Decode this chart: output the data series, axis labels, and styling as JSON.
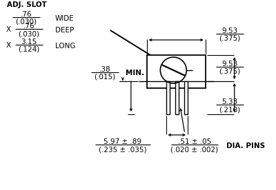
{
  "bg_color": "#ffffff",
  "line_color": "#000000",
  "text_color": "#000000",
  "adj_slot_label": "ADJ. SLOT",
  "wide_label": "WIDE",
  "deep_label": "DEEP",
  "long_label": "LONG",
  "min_label": "MIN.",
  "dia_pins_label": "DIA. PINS",
  "dim1_top": ".76",
  "dim1_bot": "(.030)",
  "dim2_top": ".76",
  "dim2_bot": "(.030)",
  "dim3_top": "3.15",
  "dim3_bot": "(.124)",
  "dim_038_top": ".38",
  "dim_038_bot": "(.015)",
  "dim_953a_top": "9.53",
  "dim_953a_bot": "(.375)",
  "dim_953b_top": "9.53",
  "dim_953b_bot": "(.375)",
  "dim_533_top": "5.33",
  "dim_533_bot": "(.210)",
  "dim_597_top": "5.97 ± .89",
  "dim_597_bot": "(.235 ± .035)",
  "dim_051_top": ".51 ± .05",
  "dim_051_bot": "(.020 ± .002)"
}
